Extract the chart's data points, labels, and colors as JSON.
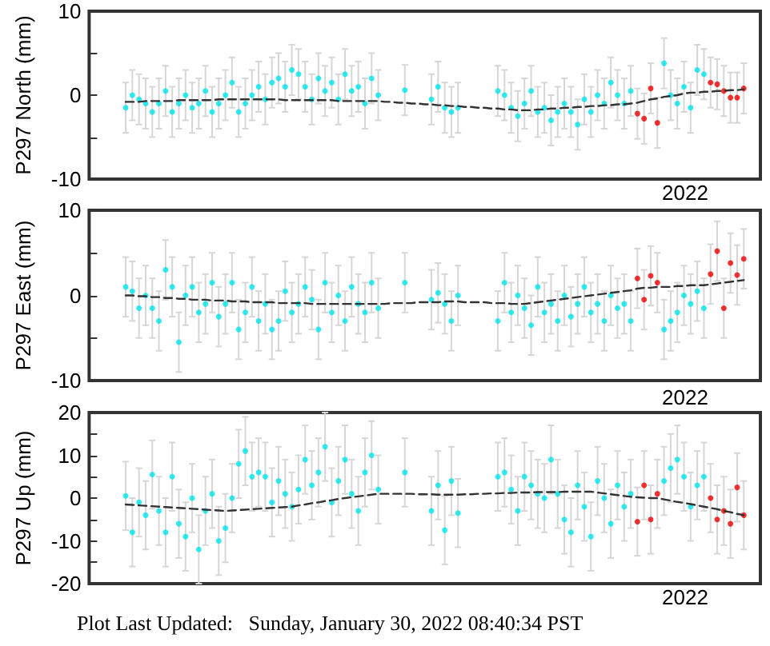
{
  "chart_data": [
    {
      "type": "scatter",
      "ylabel": "P297 North (mm)",
      "marker": "circle",
      "annotations": [
        "2022"
      ],
      "categories": [
        null,
        null,
        null,
        null,
        null,
        null,
        null,
        null,
        null,
        null,
        null,
        null,
        null,
        null,
        null,
        null,
        null,
        null,
        null,
        null,
        null,
        null,
        null,
        null,
        null,
        null,
        null,
        null,
        null,
        null,
        null,
        null,
        null,
        null,
        null,
        null,
        null,
        null,
        null,
        null,
        null,
        null,
        null,
        null,
        null,
        null,
        null,
        null,
        null,
        null,
        null,
        null,
        null,
        null,
        null,
        null,
        null,
        null,
        null,
        null,
        null,
        null,
        null,
        null,
        null,
        null,
        null,
        null,
        null,
        null,
        null,
        null,
        null,
        null,
        null,
        null,
        null,
        null,
        null,
        null,
        null,
        null,
        null,
        null,
        null,
        null,
        null,
        null,
        null,
        null,
        null,
        null,
        null,
        null,
        null,
        null,
        null,
        null,
        null,
        null,
        null
      ],
      "ylim": [
        -10,
        10
      ],
      "yticks": [
        -10,
        {
          "value": -5,
          "label": null
        },
        0,
        {
          "value": 5,
          "label": null
        },
        10
      ],
      "series": [
        {
          "color": "#00e5ee",
          "values": [
            null,
            null,
            null,
            null,
            null,
            -1.5,
            0,
            -0.5,
            -1,
            -2,
            -1,
            0.5,
            -2,
            -1,
            0,
            -1.5,
            -1,
            0.5,
            -2,
            -1,
            0,
            1.5,
            -2,
            -1,
            0,
            1,
            -0.5,
            1.5,
            2,
            1,
            3,
            2.5,
            1,
            -0.5,
            2,
            0.5,
            1.5,
            -0.5,
            2.5,
            0.5,
            1,
            -1,
            2,
            0,
            null,
            null,
            null,
            0.6,
            null,
            null,
            null,
            -0.5,
            1,
            -1.5,
            -2,
            -1.5,
            null,
            null,
            null,
            null,
            null,
            0.5,
            0,
            -1.5,
            -2.5,
            -1,
            0.5,
            -2,
            -1.5,
            -3,
            -2,
            -1,
            -2,
            -3.5,
            -0.5,
            -2,
            0,
            -1,
            1.5,
            0,
            -1,
            0.5,
            null,
            null,
            null,
            null,
            3.8,
            0,
            -1,
            1,
            -1.5,
            3,
            2.5,
            null,
            null,
            null,
            null,
            null,
            null,
            null,
            null
          ],
          "errors": [
            null,
            null,
            null,
            null,
            null,
            3,
            3,
            3,
            3,
            3,
            3,
            3,
            3,
            3,
            3,
            3,
            3,
            3,
            3,
            3,
            3,
            3,
            3,
            3,
            3,
            3,
            3,
            3,
            3,
            3,
            3,
            3,
            3,
            3,
            3,
            3,
            3,
            3,
            3,
            3,
            3,
            3,
            3,
            3,
            null,
            null,
            null,
            3,
            null,
            null,
            null,
            3,
            3,
            3,
            3,
            3,
            null,
            null,
            null,
            null,
            null,
            3,
            3,
            3,
            3,
            3,
            3,
            3,
            3,
            3,
            3,
            3,
            3,
            3,
            3,
            3,
            3,
            3,
            3,
            3,
            3,
            3,
            null,
            null,
            null,
            null,
            3,
            3,
            3,
            3,
            3,
            3,
            3,
            null,
            null,
            null,
            null,
            null,
            null,
            null,
            null
          ]
        },
        {
          "color": "#ee0000",
          "values": [
            null,
            null,
            null,
            null,
            null,
            null,
            null,
            null,
            null,
            null,
            null,
            null,
            null,
            null,
            null,
            null,
            null,
            null,
            null,
            null,
            null,
            null,
            null,
            null,
            null,
            null,
            null,
            null,
            null,
            null,
            null,
            null,
            null,
            null,
            null,
            null,
            null,
            null,
            null,
            null,
            null,
            null,
            null,
            null,
            null,
            null,
            null,
            null,
            null,
            null,
            null,
            null,
            null,
            null,
            null,
            null,
            null,
            null,
            null,
            null,
            null,
            null,
            null,
            null,
            null,
            null,
            null,
            null,
            null,
            null,
            null,
            null,
            null,
            null,
            null,
            null,
            null,
            null,
            null,
            null,
            null,
            null,
            -2.2,
            -2.8,
            0.8,
            -3.3,
            null,
            null,
            null,
            null,
            null,
            null,
            null,
            1.5,
            1.3,
            0.5,
            -0.3,
            -0.3,
            0.8,
            null,
            null
          ],
          "errors": [
            null,
            null,
            null,
            null,
            null,
            null,
            null,
            null,
            null,
            null,
            null,
            null,
            null,
            null,
            null,
            null,
            null,
            null,
            null,
            null,
            null,
            null,
            null,
            null,
            null,
            null,
            null,
            null,
            null,
            null,
            null,
            null,
            null,
            null,
            null,
            null,
            null,
            null,
            null,
            null,
            null,
            null,
            null,
            null,
            null,
            null,
            null,
            null,
            null,
            null,
            null,
            null,
            null,
            null,
            null,
            null,
            null,
            null,
            null,
            null,
            null,
            null,
            null,
            null,
            null,
            null,
            null,
            null,
            null,
            null,
            null,
            null,
            null,
            null,
            null,
            null,
            null,
            null,
            null,
            null,
            null,
            null,
            3,
            3,
            3,
            3,
            null,
            null,
            null,
            null,
            null,
            null,
            null,
            3,
            3,
            3,
            3,
            3,
            3,
            null,
            null
          ]
        },
        {
          "type": "line",
          "color": "#333333",
          "line_style": "dashed",
          "marker": "none",
          "values": [
            null,
            null,
            null,
            null,
            null,
            -0.8,
            -0.8,
            -0.8,
            -0.7,
            -0.7,
            -0.7,
            -0.7,
            -0.7,
            -0.6,
            -0.6,
            -0.6,
            -0.6,
            -0.6,
            -0.6,
            -0.5,
            -0.5,
            -0.5,
            -0.5,
            -0.5,
            -0.5,
            -0.5,
            -0.5,
            -0.5,
            -0.5,
            -0.6,
            -0.6,
            -0.6,
            -0.6,
            -0.6,
            -0.6,
            -0.6,
            -0.6,
            -0.7,
            -0.7,
            -0.7,
            -0.7,
            -0.7,
            -0.7,
            -0.7,
            -0.8,
            -0.8,
            -0.9,
            -0.9,
            -1,
            -1,
            -1.1,
            -1.1,
            -1.2,
            -1.2,
            -1.3,
            -1.3,
            -1.4,
            -1.4,
            -1.5,
            -1.5,
            -1.6,
            -1.6,
            -1.7,
            -1.7,
            -1.8,
            -1.8,
            -1.8,
            -1.7,
            -1.7,
            -1.6,
            -1.6,
            -1.5,
            -1.5,
            -1.4,
            -1.4,
            -1.3,
            -1.3,
            -1.2,
            -1.2,
            -1.1,
            -1.1,
            -1,
            -0.9,
            -0.7,
            -0.5,
            -0.4,
            -0.2,
            -0.1,
            0,
            0.2,
            0.3,
            0.3,
            0.4,
            0.4,
            0.5,
            0.5,
            0.6,
            0.6,
            0.7,
            null,
            null
          ]
        }
      ]
    },
    {
      "type": "scatter",
      "ylabel": "P297 East (mm)",
      "marker": "circle",
      "categories": [
        null,
        null,
        null,
        null,
        null,
        null,
        null,
        null,
        null,
        null,
        null,
        null,
        null,
        null,
        null,
        null,
        null,
        null,
        null,
        null,
        null,
        null,
        null,
        null,
        null,
        null,
        null,
        null,
        null,
        null,
        null,
        null,
        null,
        null,
        null,
        null,
        null,
        null,
        null,
        null,
        null,
        null,
        null,
        null,
        null,
        null,
        null,
        null,
        null,
        null,
        null,
        null,
        null,
        null,
        null,
        null,
        null,
        null,
        null,
        null,
        null,
        null,
        null,
        null,
        null,
        null,
        null,
        null,
        null,
        null,
        null,
        null,
        null,
        null,
        null,
        null,
        null,
        null,
        null,
        null,
        null,
        null,
        null,
        null,
        null,
        null,
        null,
        null,
        null,
        null,
        null,
        null,
        null,
        null,
        null,
        null,
        null,
        null,
        null,
        null,
        null
      ],
      "ylim": [
        -10,
        10
      ],
      "yticks": [
        -10,
        {
          "value": -5,
          "label": null
        },
        0,
        {
          "value": 5,
          "label": null
        },
        10
      ],
      "series": [
        {
          "color": "#00e5ee",
          "values": [
            null,
            null,
            null,
            null,
            null,
            1,
            0.5,
            -1.5,
            0,
            -1.5,
            -3,
            3,
            1,
            -5.5,
            0,
            1,
            -2,
            -1,
            1.5,
            -2.5,
            -1,
            1.5,
            -4,
            -2,
            1,
            -3,
            -1,
            -4,
            -3,
            0.5,
            -2,
            -1,
            1,
            -0.5,
            -4,
            1.5,
            -2,
            0,
            -3,
            1,
            -1,
            -2,
            1.5,
            -1.5,
            null,
            null,
            null,
            1.5,
            null,
            null,
            null,
            -0.5,
            0.3,
            -1,
            -3,
            0,
            null,
            null,
            null,
            null,
            null,
            -3,
            1.5,
            -2,
            0,
            -1.5,
            -3.5,
            1,
            -2,
            -1,
            -3,
            0,
            -2.5,
            -1,
            1,
            -2,
            -1,
            -3,
            0,
            -1.5,
            -1,
            -3,
            null,
            null,
            null,
            null,
            -4,
            -3,
            -2,
            0,
            -1,
            0.5,
            -1.5,
            null,
            null,
            null,
            null,
            null,
            null,
            null,
            null
          ],
          "errors": [
            null,
            null,
            null,
            null,
            null,
            3.5,
            3.5,
            3.5,
            3.5,
            3.5,
            3.5,
            3.5,
            3.5,
            3.5,
            3.5,
            3.5,
            3.5,
            3.5,
            3.5,
            3.5,
            3.5,
            3.5,
            3.5,
            3.5,
            3.5,
            3.5,
            3.5,
            3.5,
            3.5,
            3.5,
            3.5,
            3.5,
            3.5,
            3.5,
            3.5,
            3.5,
            3.5,
            3.5,
            3.5,
            3.5,
            3.5,
            3.5,
            3.5,
            3.5,
            null,
            null,
            null,
            3.5,
            null,
            null,
            null,
            3.5,
            3.5,
            3.5,
            3.5,
            3.5,
            null,
            null,
            null,
            null,
            null,
            3.5,
            3.5,
            3.5,
            3.5,
            3.5,
            3.5,
            3.5,
            3.5,
            3.5,
            3.5,
            3.5,
            3.5,
            3.5,
            3.5,
            3.5,
            3.5,
            3.5,
            3.5,
            3.5,
            3.5,
            3.5,
            null,
            null,
            null,
            null,
            3.5,
            3.5,
            3.5,
            3.5,
            3.5,
            3.5,
            3.5,
            null,
            null,
            null,
            null,
            null,
            null,
            null,
            null
          ]
        },
        {
          "color": "#ee0000",
          "values": [
            null,
            null,
            null,
            null,
            null,
            null,
            null,
            null,
            null,
            null,
            null,
            null,
            null,
            null,
            null,
            null,
            null,
            null,
            null,
            null,
            null,
            null,
            null,
            null,
            null,
            null,
            null,
            null,
            null,
            null,
            null,
            null,
            null,
            null,
            null,
            null,
            null,
            null,
            null,
            null,
            null,
            null,
            null,
            null,
            null,
            null,
            null,
            null,
            null,
            null,
            null,
            null,
            null,
            null,
            null,
            null,
            null,
            null,
            null,
            null,
            null,
            null,
            null,
            null,
            null,
            null,
            null,
            null,
            null,
            null,
            null,
            null,
            null,
            null,
            null,
            null,
            null,
            null,
            null,
            null,
            null,
            null,
            2,
            -0.5,
            2.3,
            1.5,
            null,
            null,
            null,
            null,
            null,
            null,
            null,
            2.5,
            5.2,
            -1.5,
            3.8,
            2.4,
            4.3,
            null,
            null
          ],
          "errors": [
            null,
            null,
            null,
            null,
            null,
            null,
            null,
            null,
            null,
            null,
            null,
            null,
            null,
            null,
            null,
            null,
            null,
            null,
            null,
            null,
            null,
            null,
            null,
            null,
            null,
            null,
            null,
            null,
            null,
            null,
            null,
            null,
            null,
            null,
            null,
            null,
            null,
            null,
            null,
            null,
            null,
            null,
            null,
            null,
            null,
            null,
            null,
            null,
            null,
            null,
            null,
            null,
            null,
            null,
            null,
            null,
            null,
            null,
            null,
            null,
            null,
            null,
            null,
            null,
            null,
            null,
            null,
            null,
            null,
            null,
            null,
            null,
            null,
            null,
            null,
            null,
            null,
            null,
            null,
            null,
            null,
            null,
            3.5,
            3.5,
            3.5,
            3.5,
            null,
            null,
            null,
            null,
            null,
            null,
            null,
            3.5,
            3.5,
            3.5,
            3.5,
            3.5,
            3.5,
            null,
            null
          ]
        },
        {
          "type": "line",
          "color": "#333333",
          "line_style": "dashed",
          "marker": "none",
          "values": [
            null,
            null,
            null,
            null,
            null,
            0,
            0,
            -0.1,
            -0.1,
            -0.2,
            -0.2,
            -0.3,
            -0.3,
            -0.4,
            -0.4,
            -0.5,
            -0.5,
            -0.5,
            -0.6,
            -0.6,
            -0.6,
            -0.7,
            -0.7,
            -0.7,
            -0.8,
            -0.8,
            -0.8,
            -0.8,
            -0.9,
            -0.9,
            -0.9,
            -0.9,
            -0.9,
            -1,
            -1,
            -1,
            -1,
            -1,
            -1,
            -1,
            -1,
            -1,
            -1,
            -1,
            -1,
            -0.9,
            -0.9,
            -0.9,
            -0.9,
            -0.8,
            -0.8,
            -0.8,
            -0.8,
            -0.7,
            -0.7,
            -0.7,
            -0.8,
            -0.8,
            -0.8,
            -0.8,
            -0.9,
            -0.9,
            -0.9,
            -1,
            -1,
            -1,
            -0.9,
            -0.8,
            -0.7,
            -0.6,
            -0.5,
            -0.4,
            -0.3,
            -0.2,
            -0.1,
            0,
            0.1,
            0.2,
            0.3,
            0.4,
            0.5,
            0.6,
            0.8,
            0.9,
            0.9,
            1,
            1,
            1,
            1.1,
            1.1,
            1.2,
            1.2,
            1.2,
            1.3,
            1.4,
            1.5,
            1.6,
            1.7,
            1.8,
            null,
            null
          ]
        }
      ]
    },
    {
      "type": "scatter",
      "ylabel": "P297 Up (mm)",
      "marker": "circle",
      "annotations": [
        "2022",
        "2022",
        "Plot Last Updated:   Sunday, January 30, 2022 08:40:34 PST"
      ],
      "categories": [
        null,
        null,
        null,
        null,
        null,
        null,
        null,
        null,
        null,
        null,
        null,
        null,
        null,
        null,
        null,
        null,
        null,
        null,
        null,
        null,
        null,
        null,
        null,
        null,
        null,
        null,
        null,
        null,
        null,
        null,
        null,
        null,
        null,
        null,
        null,
        null,
        null,
        null,
        null,
        null,
        null,
        null,
        null,
        null,
        null,
        null,
        null,
        null,
        null,
        null,
        null,
        null,
        null,
        null,
        null,
        null,
        null,
        null,
        null,
        null,
        null,
        null,
        null,
        null,
        null,
        null,
        null,
        null,
        null,
        null,
        null,
        null,
        null,
        null,
        null,
        null,
        null,
        null,
        null,
        null,
        null,
        null,
        null,
        null,
        null,
        null,
        null,
        null,
        null,
        null,
        null,
        null,
        null,
        null,
        null,
        null,
        null,
        null,
        null,
        null,
        null
      ],
      "ylim": [
        -20,
        20
      ],
      "yticks": [
        -20,
        {
          "value": -15,
          "label": null
        },
        -10,
        {
          "value": -5,
          "label": null
        },
        0,
        {
          "value": 5,
          "label": null
        },
        10,
        {
          "value": 15,
          "label": null
        },
        20
      ],
      "series": [
        {
          "color": "#00e5ee",
          "values": [
            null,
            null,
            null,
            null,
            null,
            0.5,
            -8,
            -1,
            -4,
            5.5,
            -3,
            -8,
            5,
            -6,
            -9,
            0,
            -12,
            -3,
            1,
            -10,
            -7,
            0,
            8,
            11,
            5,
            6,
            5,
            -1,
            4,
            1,
            -2,
            2,
            9,
            3,
            6,
            12,
            -1,
            4,
            9,
            1,
            -3,
            6,
            10,
            2,
            null,
            null,
            null,
            6,
            null,
            null,
            null,
            -3,
            3,
            -7.5,
            4,
            -3.5,
            null,
            null,
            null,
            null,
            null,
            5,
            6,
            2,
            -3,
            5,
            3,
            1,
            0,
            9,
            1,
            -5,
            -8,
            3,
            -2,
            -9,
            4,
            0,
            -6,
            3,
            -2,
            1,
            null,
            null,
            null,
            null,
            4,
            7,
            9,
            5,
            -2,
            3,
            5,
            null,
            null,
            null,
            null,
            null,
            null,
            null,
            null
          ],
          "errors": [
            null,
            null,
            null,
            null,
            null,
            8,
            8,
            8,
            8,
            8,
            8,
            8,
            8,
            8,
            8,
            8,
            8,
            8,
            8,
            8,
            8,
            8,
            8,
            8,
            8,
            8,
            8,
            8,
            8,
            8,
            8,
            8,
            8,
            8,
            8,
            8,
            8,
            8,
            8,
            8,
            8,
            8,
            8,
            8,
            null,
            null,
            null,
            8,
            null,
            null,
            null,
            8,
            8,
            8,
            8,
            8,
            null,
            null,
            null,
            null,
            null,
            8,
            8,
            8,
            8,
            8,
            8,
            8,
            8,
            8,
            8,
            8,
            8,
            8,
            8,
            8,
            8,
            8,
            8,
            8,
            8,
            8,
            null,
            null,
            null,
            null,
            8,
            8,
            8,
            8,
            8,
            8,
            8,
            null,
            null,
            null,
            null,
            null,
            null,
            null,
            null
          ]
        },
        {
          "color": "#ee0000",
          "values": [
            null,
            null,
            null,
            null,
            null,
            null,
            null,
            null,
            null,
            null,
            null,
            null,
            null,
            null,
            null,
            null,
            null,
            null,
            null,
            null,
            null,
            null,
            null,
            null,
            null,
            null,
            null,
            null,
            null,
            null,
            null,
            null,
            null,
            null,
            null,
            null,
            null,
            null,
            null,
            null,
            null,
            null,
            null,
            null,
            null,
            null,
            null,
            null,
            null,
            null,
            null,
            null,
            null,
            null,
            null,
            null,
            null,
            null,
            null,
            null,
            null,
            null,
            null,
            null,
            null,
            null,
            null,
            null,
            null,
            null,
            null,
            null,
            null,
            null,
            null,
            null,
            null,
            null,
            null,
            null,
            null,
            null,
            -5.5,
            3,
            -5,
            1,
            null,
            null,
            null,
            null,
            null,
            null,
            null,
            0,
            -5,
            -3,
            -6,
            2.5,
            -4,
            null,
            null
          ],
          "errors": [
            null,
            null,
            null,
            null,
            null,
            null,
            null,
            null,
            null,
            null,
            null,
            null,
            null,
            null,
            null,
            null,
            null,
            null,
            null,
            null,
            null,
            null,
            null,
            null,
            null,
            null,
            null,
            null,
            null,
            null,
            null,
            null,
            null,
            null,
            null,
            null,
            null,
            null,
            null,
            null,
            null,
            null,
            null,
            null,
            null,
            null,
            null,
            null,
            null,
            null,
            null,
            null,
            null,
            null,
            null,
            null,
            null,
            null,
            null,
            null,
            null,
            null,
            null,
            null,
            null,
            null,
            null,
            null,
            null,
            null,
            null,
            null,
            null,
            null,
            null,
            null,
            null,
            null,
            null,
            null,
            null,
            null,
            8,
            8,
            8,
            8,
            null,
            null,
            null,
            null,
            null,
            null,
            null,
            8,
            8,
            8,
            8,
            8,
            8,
            null,
            null
          ]
        },
        {
          "type": "line",
          "color": "#333333",
          "line_style": "dashed",
          "marker": "none",
          "values": [
            null,
            null,
            null,
            null,
            null,
            -1.5,
            -1.6,
            -1.7,
            -1.8,
            -1.9,
            -2,
            -2.1,
            -2.2,
            -2.3,
            -2.4,
            -2.5,
            -2.6,
            -2.7,
            -2.8,
            -2.9,
            -3,
            -2.9,
            -2.8,
            -2.7,
            -2.6,
            -2.5,
            -2.4,
            -2.3,
            -2.2,
            -2.1,
            -2,
            -1.7,
            -1.5,
            -1.2,
            -1,
            -0.7,
            -0.5,
            -0.2,
            0,
            0.2,
            0.4,
            0.6,
            0.8,
            1,
            1,
            1,
            1,
            1,
            1,
            0.9,
            0.9,
            0.9,
            0.8,
            0.8,
            0.8,
            0.8,
            0.9,
            0.9,
            1,
            1,
            1.1,
            1.1,
            1.2,
            1.2,
            1.3,
            1.3,
            1.3,
            1.4,
            1.4,
            1.4,
            1.4,
            1.5,
            1.5,
            1.5,
            1.5,
            1.5,
            1.3,
            1.1,
            0.9,
            0.7,
            0.5,
            0.3,
            0.2,
            0.1,
            0,
            0,
            -0.3,
            -0.6,
            -0.9,
            -1.1,
            -1.4,
            -1.7,
            -2,
            -2.3,
            -2.6,
            -3,
            -3.3,
            -3.7,
            -4,
            null,
            null
          ]
        }
      ]
    }
  ]
}
